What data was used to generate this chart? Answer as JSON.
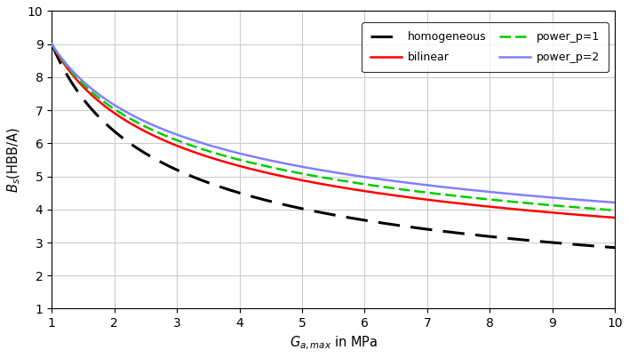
{
  "title": "",
  "xlabel": "G_{a,max} in MPa",
  "ylabel": "B_s(HBB/A)",
  "xlim": [
    1,
    10
  ],
  "ylim": [
    1,
    10
  ],
  "xticks": [
    1,
    2,
    3,
    4,
    5,
    6,
    7,
    8,
    9,
    10
  ],
  "yticks": [
    1,
    2,
    3,
    4,
    5,
    6,
    7,
    8,
    9,
    10
  ],
  "series": [
    {
      "label": "homogeneous",
      "color": "#000000",
      "linestyle": "--",
      "linewidth": 2.2,
      "dashes": [
        8,
        4
      ],
      "formula": "homogeneous",
      "A": 9.0,
      "exp": 0.5
    },
    {
      "label": "bilinear",
      "color": "#ff0000",
      "linestyle": "-",
      "linewidth": 1.8,
      "formula": "bilinear",
      "A": 9.0,
      "exp": 0.38
    },
    {
      "label": "power_p=1",
      "color": "#00cc00",
      "linestyle": "--",
      "linewidth": 1.8,
      "dashes": [
        5,
        2
      ],
      "formula": "power_p1",
      "A": 9.0,
      "exp": 0.355
    },
    {
      "label": "power_p=2",
      "color": "#8080ff",
      "linestyle": "-",
      "linewidth": 1.8,
      "formula": "power_p2",
      "A": 9.0,
      "exp": 0.33
    }
  ],
  "legend_loc": "upper right",
  "grid_color": "#cccccc",
  "background_color": "#ffffff",
  "figsize": [
    7.08,
    4.03
  ],
  "dpi": 100
}
